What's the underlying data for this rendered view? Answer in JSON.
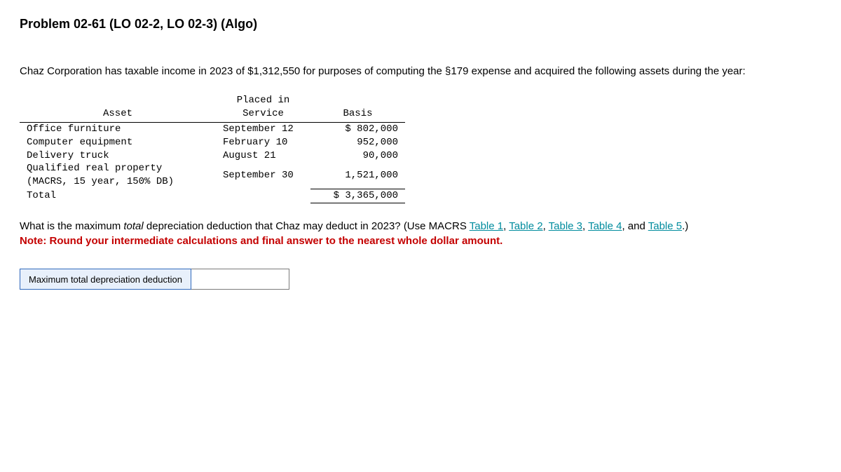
{
  "title": "Problem 02-61 (LO 02-2, LO 02-3) (Algo)",
  "intro": "Chaz Corporation has taxable income in 2023 of $1,312,550 for purposes of computing the §179 expense and acquired the following assets during the year:",
  "table": {
    "header_asset": "Asset",
    "header_service_l1": "Placed in",
    "header_service_l2": "Service",
    "header_basis": "Basis",
    "rows": [
      {
        "asset": "Office furniture",
        "date": "September 12",
        "basis": "$ 802,000"
      },
      {
        "asset": "Computer equipment",
        "date": "February 10",
        "basis": "952,000"
      },
      {
        "asset": "Delivery truck",
        "date": "August 21",
        "basis": "90,000"
      },
      {
        "asset": "Qualified real property (MACRS, 15 year, 150% DB)",
        "date": "September 30",
        "basis": "1,521,000"
      }
    ],
    "total_label": "Total",
    "total_basis": "$ 3,365,000"
  },
  "question": {
    "pre": "What is the maximum ",
    "emph": "total",
    "mid": " depreciation deduction that Chaz may deduct in 2023? (Use MACRS ",
    "tables": [
      "Table 1",
      "Table 2",
      "Table 3",
      "Table 4",
      "Table 5"
    ],
    "end": ".)",
    "note": "Note: Round your intermediate calculations and final answer to the nearest whole dollar amount."
  },
  "answer": {
    "label": "Maximum total depreciation deduction",
    "value": ""
  }
}
